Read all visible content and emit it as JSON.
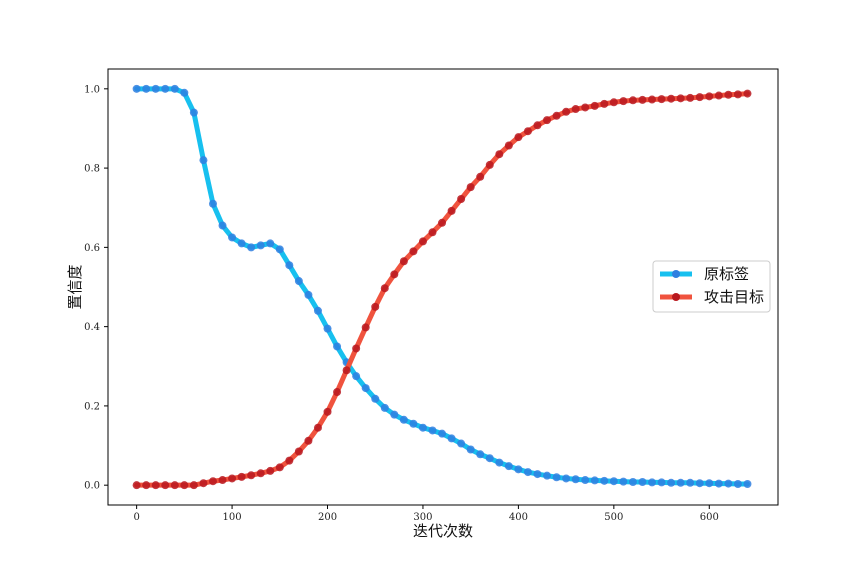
{
  "chart_data": {
    "type": "line",
    "title": "",
    "xlabel": "迭代次数",
    "ylabel": "置信度",
    "xlim": [
      -30,
      672
    ],
    "ylim": [
      -0.05,
      1.05
    ],
    "xticks": [
      0,
      100,
      200,
      300,
      400,
      500,
      600
    ],
    "yticks": [
      0.0,
      0.2,
      0.4,
      0.6,
      0.8,
      1.0
    ],
    "ytick_labels": [
      "0.0",
      "0.2",
      "0.4",
      "0.6",
      "0.8",
      "1.0"
    ],
    "legend_position": "center-right",
    "grid": false,
    "x": [
      0,
      10,
      20,
      30,
      40,
      50,
      60,
      70,
      80,
      90,
      100,
      110,
      120,
      130,
      140,
      150,
      160,
      170,
      180,
      190,
      200,
      210,
      220,
      230,
      240,
      250,
      260,
      270,
      280,
      290,
      300,
      310,
      320,
      330,
      340,
      350,
      360,
      370,
      380,
      390,
      400,
      410,
      420,
      430,
      440,
      450,
      460,
      470,
      480,
      490,
      500,
      510,
      520,
      530,
      540,
      550,
      560,
      570,
      580,
      590,
      600,
      610,
      620,
      630,
      640
    ],
    "series": [
      {
        "name": "原标签",
        "color": "#17c0ef",
        "marker_color": "#2f7fe0",
        "values": [
          1.0,
          1.0,
          1.0,
          1.0,
          1.0,
          0.99,
          0.94,
          0.82,
          0.71,
          0.655,
          0.625,
          0.61,
          0.6,
          0.605,
          0.61,
          0.595,
          0.555,
          0.515,
          0.48,
          0.44,
          0.395,
          0.35,
          0.31,
          0.275,
          0.245,
          0.218,
          0.195,
          0.178,
          0.165,
          0.155,
          0.145,
          0.138,
          0.13,
          0.118,
          0.105,
          0.09,
          0.078,
          0.068,
          0.057,
          0.048,
          0.04,
          0.033,
          0.028,
          0.024,
          0.02,
          0.017,
          0.015,
          0.013,
          0.012,
          0.011,
          0.01,
          0.009,
          0.008,
          0.008,
          0.007,
          0.007,
          0.006,
          0.006,
          0.006,
          0.005,
          0.005,
          0.004,
          0.004,
          0.003,
          0.003
        ]
      },
      {
        "name": "攻击目标",
        "color": "#f0533e",
        "marker_color": "#b8181e",
        "values": [
          0.0,
          0.0,
          0.0,
          0.0,
          0.0,
          0.0,
          0.0,
          0.005,
          0.01,
          0.013,
          0.017,
          0.021,
          0.025,
          0.03,
          0.036,
          0.045,
          0.062,
          0.085,
          0.112,
          0.145,
          0.185,
          0.235,
          0.29,
          0.345,
          0.398,
          0.45,
          0.497,
          0.532,
          0.565,
          0.59,
          0.615,
          0.638,
          0.662,
          0.692,
          0.722,
          0.752,
          0.778,
          0.808,
          0.835,
          0.857,
          0.878,
          0.893,
          0.908,
          0.921,
          0.932,
          0.942,
          0.949,
          0.953,
          0.957,
          0.962,
          0.966,
          0.969,
          0.971,
          0.972,
          0.973,
          0.974,
          0.975,
          0.976,
          0.977,
          0.979,
          0.981,
          0.983,
          0.985,
          0.986,
          0.988
        ]
      }
    ]
  }
}
